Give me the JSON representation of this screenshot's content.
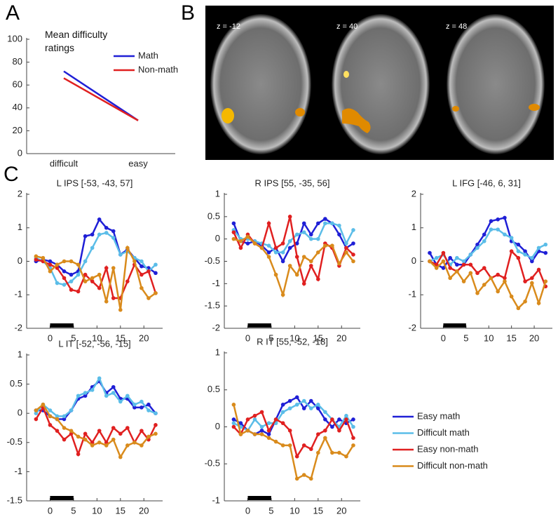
{
  "panel_b": {
    "label": "B",
    "slices": [
      "z = -12",
      "z = 40",
      "z = 48"
    ]
  },
  "chart_data": [
    {
      "panel": "A",
      "type": "line",
      "title": "Mean difficulty ratings",
      "categories": [
        "difficult",
        "easy"
      ],
      "ylim": [
        0,
        100
      ],
      "yticks": [
        0,
        20,
        40,
        60,
        80,
        100
      ],
      "legend": true,
      "series": [
        {
          "name": "Math",
          "color": "#1f1fd6",
          "values": [
            72,
            29
          ]
        },
        {
          "name": "Non-math",
          "color": "#e02020",
          "values": [
            66,
            29
          ]
        }
      ]
    },
    {
      "panel": "C",
      "type": "line",
      "title": "L IPS [-53, -43, 57]",
      "x": [
        -3,
        -1.5,
        0,
        1.5,
        3,
        4.5,
        6,
        7.5,
        9,
        10.5,
        12,
        13.5,
        15,
        16.5,
        18,
        19.5,
        21,
        22.5
      ],
      "xlim": [
        -5,
        24
      ],
      "xticks": [
        0,
        5,
        10,
        15,
        20
      ],
      "ylim": [
        -2,
        2
      ],
      "yticks": [
        -2,
        -1,
        0,
        1,
        2
      ],
      "stimulus_bar": [
        0,
        5
      ],
      "series": [
        {
          "color": "#1f1fd6",
          "values": [
            0.0,
            0.05,
            0.0,
            -0.1,
            -0.3,
            -0.4,
            -0.3,
            0.75,
            0.8,
            1.25,
            1.0,
            0.9,
            0.2,
            0.35,
            0.1,
            -0.15,
            -0.2,
            -0.35
          ]
        },
        {
          "color": "#5bbde8",
          "values": [
            0.1,
            0.0,
            -0.2,
            -0.65,
            -0.7,
            -0.6,
            -0.4,
            0.0,
            0.4,
            0.8,
            0.85,
            0.7,
            0.2,
            0.3,
            0.1,
            0.0,
            -0.3,
            -0.1
          ]
        },
        {
          "color": "#e02020",
          "values": [
            0.05,
            0.0,
            -0.1,
            -0.2,
            -0.5,
            -0.85,
            -0.9,
            -0.4,
            -0.6,
            -0.8,
            -0.2,
            -1.1,
            -1.1,
            -0.6,
            -0.1,
            -0.4,
            -0.3,
            -0.95
          ]
        },
        {
          "color": "#d98b1c",
          "values": [
            0.15,
            0.1,
            -0.3,
            -0.1,
            0.0,
            0.0,
            -0.1,
            -0.6,
            -0.5,
            -0.4,
            -1.2,
            -0.2,
            -1.45,
            0.4,
            0.0,
            -0.8,
            -1.1,
            -0.95
          ]
        }
      ]
    },
    {
      "type": "line",
      "title": "R IPS [55, -35, 56]",
      "x": [
        -3,
        -1.5,
        0,
        1.5,
        3,
        4.5,
        6,
        7.5,
        9,
        10.5,
        12,
        13.5,
        15,
        16.5,
        18,
        19.5,
        21,
        22.5
      ],
      "xlim": [
        -5,
        24
      ],
      "xticks": [
        0,
        5,
        10,
        15,
        20
      ],
      "ylim": [
        -2,
        1
      ],
      "yticks": [
        -2,
        -1.5,
        -1,
        -0.5,
        0,
        0.5,
        1
      ],
      "stimulus_bar": [
        0,
        5
      ],
      "series": [
        {
          "color": "#1f1fd6",
          "values": [
            0.35,
            -0.05,
            -0.1,
            -0.05,
            -0.15,
            -0.3,
            -0.2,
            -0.5,
            -0.2,
            -0.1,
            0.35,
            0.1,
            0.35,
            0.45,
            0.35,
            0.1,
            -0.2,
            -0.1
          ]
        },
        {
          "color": "#5bbde8",
          "values": [
            0.2,
            0.0,
            0.0,
            -0.05,
            -0.1,
            -0.15,
            -0.3,
            -0.3,
            -0.05,
            0.1,
            0.15,
            0.0,
            0.0,
            0.35,
            0.35,
            0.3,
            -0.1,
            0.2
          ]
        },
        {
          "color": "#e02020",
          "values": [
            0.15,
            -0.2,
            0.1,
            -0.1,
            -0.2,
            0.35,
            -0.2,
            -0.1,
            0.5,
            -0.4,
            -1.0,
            -0.6,
            -0.9,
            -0.1,
            -0.2,
            -0.6,
            -0.2,
            -0.35
          ]
        },
        {
          "color": "#d98b1c",
          "values": [
            0.0,
            -0.05,
            0.05,
            -0.1,
            -0.2,
            -0.4,
            -0.8,
            -1.25,
            -0.6,
            -0.8,
            -0.4,
            -0.5,
            -0.3,
            -0.15,
            -0.15,
            -0.55,
            -0.3,
            -0.5
          ]
        }
      ]
    },
    {
      "type": "line",
      "title": "L IFG [-46, 6, 31]",
      "x": [
        -3,
        -1.5,
        0,
        1.5,
        3,
        4.5,
        6,
        7.5,
        9,
        10.5,
        12,
        13.5,
        15,
        16.5,
        18,
        19.5,
        21,
        22.5
      ],
      "xlim": [
        -5,
        24
      ],
      "xticks": [
        0,
        5,
        10,
        15,
        20
      ],
      "ylim": [
        -2,
        2
      ],
      "yticks": [
        -2,
        -1,
        0,
        1,
        2
      ],
      "stimulus_bar": [
        0,
        5
      ],
      "series": [
        {
          "color": "#1f1fd6",
          "values": [
            0.25,
            -0.1,
            -0.2,
            0.1,
            -0.1,
            -0.1,
            0.2,
            0.5,
            0.8,
            1.2,
            1.25,
            1.3,
            0.6,
            0.5,
            0.3,
            0.0,
            0.3,
            0.25
          ]
        },
        {
          "color": "#5bbde8",
          "values": [
            0.0,
            0.1,
            0.2,
            -0.1,
            0.1,
            0.0,
            0.2,
            0.4,
            0.6,
            0.95,
            0.95,
            0.8,
            0.7,
            0.3,
            0.2,
            0.1,
            0.4,
            0.5
          ]
        },
        {
          "color": "#e02020",
          "values": [
            0.0,
            -0.1,
            0.25,
            -0.2,
            -0.3,
            -0.1,
            -0.1,
            -0.35,
            -0.2,
            -0.5,
            -0.4,
            -0.5,
            0.3,
            0.1,
            -0.6,
            -0.5,
            -0.25,
            -0.75
          ]
        },
        {
          "color": "#d98b1c",
          "values": [
            0.0,
            -0.2,
            0.0,
            -0.5,
            -0.3,
            -0.6,
            -0.35,
            -0.95,
            -0.7,
            -0.5,
            -0.9,
            -0.6,
            -1.05,
            -1.4,
            -1.2,
            -0.65,
            -1.25,
            -0.6
          ]
        }
      ]
    },
    {
      "type": "line",
      "title": "L IT [-52, -56, -15]",
      "x": [
        -3,
        -1.5,
        0,
        1.5,
        3,
        4.5,
        6,
        7.5,
        9,
        10.5,
        12,
        13.5,
        15,
        16.5,
        18,
        19.5,
        21,
        22.5
      ],
      "xlim": [
        -5,
        24
      ],
      "xticks": [
        0,
        5,
        10,
        15,
        20
      ],
      "ylim": [
        -1.5,
        1
      ],
      "yticks": [
        -1.5,
        -1,
        -0.5,
        0,
        0.5,
        1
      ],
      "stimulus_bar": [
        0,
        5
      ],
      "series": [
        {
          "color": "#1f1fd6",
          "values": [
            0.05,
            0.05,
            -0.05,
            -0.1,
            -0.1,
            0.05,
            0.25,
            0.3,
            0.45,
            0.55,
            0.35,
            0.45,
            0.25,
            0.25,
            0.1,
            0.1,
            0.15,
            0.0
          ]
        },
        {
          "color": "#5bbde8",
          "values": [
            0.0,
            0.15,
            0.05,
            -0.05,
            -0.05,
            0.05,
            0.3,
            0.35,
            0.4,
            0.6,
            0.3,
            0.35,
            0.2,
            0.3,
            0.15,
            0.2,
            0.05,
            0.0
          ]
        },
        {
          "color": "#e02020",
          "values": [
            -0.1,
            0.1,
            -0.2,
            -0.3,
            -0.45,
            -0.35,
            -0.7,
            -0.35,
            -0.5,
            -0.3,
            -0.5,
            -0.25,
            -0.35,
            -0.25,
            -0.5,
            -0.3,
            -0.45,
            -0.2
          ]
        },
        {
          "color": "#d98b1c",
          "values": [
            0.05,
            0.15,
            -0.05,
            -0.1,
            -0.25,
            -0.3,
            -0.4,
            -0.45,
            -0.55,
            -0.5,
            -0.55,
            -0.45,
            -0.75,
            -0.55,
            -0.5,
            -0.55,
            -0.4,
            -0.35
          ]
        }
      ]
    },
    {
      "type": "line",
      "title": "R IT [55, -52, -18]",
      "x": [
        -3,
        -1.5,
        0,
        1.5,
        3,
        4.5,
        6,
        7.5,
        9,
        10.5,
        12,
        13.5,
        15,
        16.5,
        18,
        19.5,
        21,
        22.5
      ],
      "xlim": [
        -5,
        24
      ],
      "xticks": [
        0,
        5,
        10,
        15,
        20
      ],
      "ylim": [
        -1,
        1
      ],
      "yticks": [
        -1,
        -0.5,
        0,
        0.5,
        1
      ],
      "stimulus_bar": [
        0,
        5
      ],
      "legend": true,
      "series": [
        {
          "name": "Easy math",
          "color": "#1f1fd6",
          "values": [
            0.1,
            0.05,
            -0.05,
            -0.1,
            -0.05,
            -0.1,
            0.1,
            0.3,
            0.35,
            0.4,
            0.25,
            0.35,
            0.25,
            0.1,
            0.0,
            0.1,
            0.05,
            0.1
          ]
        },
        {
          "name": "Difficult math",
          "color": "#5bbde8",
          "values": [
            0.05,
            0.0,
            -0.05,
            0.1,
            0.0,
            0.05,
            0.05,
            0.2,
            0.25,
            0.3,
            0.35,
            0.25,
            0.3,
            0.2,
            0.1,
            0.0,
            0.15,
            0.0
          ]
        },
        {
          "name": "Easy non-math",
          "color": "#e02020",
          "values": [
            0.0,
            -0.1,
            0.1,
            0.15,
            0.2,
            -0.05,
            0.1,
            0.05,
            -0.05,
            -0.4,
            -0.25,
            -0.3,
            -0.1,
            -0.05,
            0.1,
            -0.05,
            0.1,
            -0.15
          ]
        },
        {
          "name": "Difficult non-math",
          "color": "#d98b1c",
          "values": [
            0.3,
            -0.1,
            -0.05,
            -0.1,
            -0.1,
            -0.15,
            -0.2,
            -0.25,
            -0.25,
            -0.7,
            -0.65,
            -0.7,
            -0.35,
            -0.15,
            -0.35,
            -0.35,
            -0.4,
            -0.25
          ]
        }
      ]
    }
  ]
}
